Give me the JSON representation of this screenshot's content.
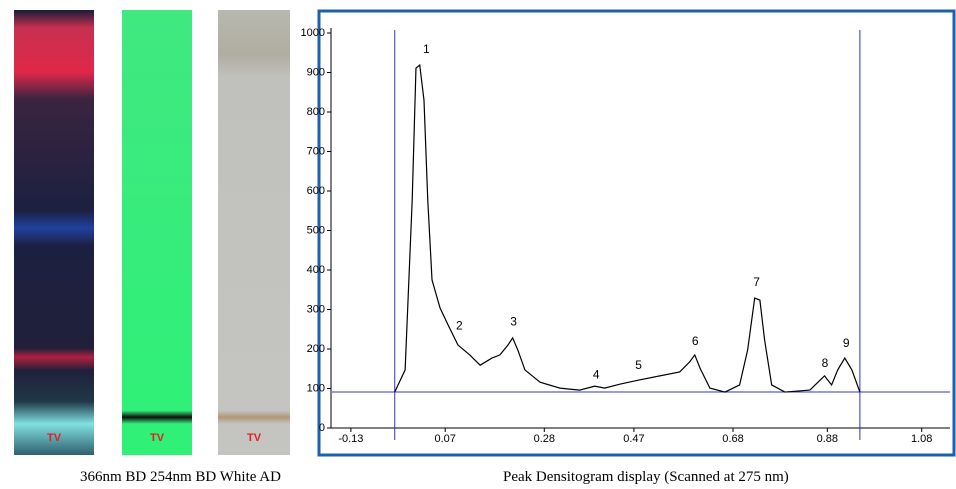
{
  "plates": [
    {
      "label": "TV"
    },
    {
      "label": "TV"
    },
    {
      "label": "TV"
    }
  ],
  "caption_left": "366nm BD 254nm BD White AD",
  "chart_data": {
    "type": "line",
    "caption": "Peak Densitogram display (Scanned at 275 nm)",
    "x": [
      -0.037,
      -0.015,
      0.0,
      0.008,
      0.016,
      0.025,
      0.033,
      0.042,
      0.059,
      0.076,
      0.097,
      0.122,
      0.144,
      0.169,
      0.186,
      0.203,
      0.213,
      0.224,
      0.239,
      0.271,
      0.313,
      0.355,
      0.387,
      0.408,
      0.44,
      0.483,
      0.525,
      0.567,
      0.588,
      0.599,
      0.61,
      0.631,
      0.663,
      0.694,
      0.711,
      0.726,
      0.737,
      0.747,
      0.762,
      0.79,
      0.843,
      0.874,
      0.889,
      0.902,
      0.917,
      0.932,
      0.949
    ],
    "series": [
      {
        "color": "#000000",
        "values": [
          91,
          147,
          577,
          911,
          919,
          830,
          577,
          375,
          304,
          261,
          210,
          185,
          159,
          177,
          185,
          210,
          228,
          197,
          147,
          116,
          101,
          96,
          106,
          101,
          111,
          122,
          132,
          142,
          167,
          185,
          152,
          101,
          91,
          109,
          197,
          329,
          324,
          223,
          109,
          91,
          96,
          132,
          109,
          147,
          177,
          147,
          91
        ]
      }
    ],
    "xlim": [
      -0.17,
      1.14
    ],
    "ylim": [
      0,
      1000
    ],
    "xticks": [
      -0.13,
      0.07,
      0.28,
      0.47,
      0.68,
      0.88,
      1.08
    ],
    "yticks": [
      0,
      100,
      200,
      300,
      400,
      500,
      600,
      700,
      800,
      900,
      1000
    ],
    "baseline": 91,
    "bounds": [
      -0.037,
      0.949
    ],
    "guide_color": "#3333bb",
    "annotations": [
      {
        "text": "1",
        "x": 0.03,
        "y": 950
      },
      {
        "text": "2",
        "x": 0.1,
        "y": 250
      },
      {
        "text": "3",
        "x": 0.215,
        "y": 260
      },
      {
        "text": "4",
        "x": 0.39,
        "y": 125
      },
      {
        "text": "5",
        "x": 0.48,
        "y": 150
      },
      {
        "text": "6",
        "x": 0.6,
        "y": 210
      },
      {
        "text": "7",
        "x": 0.73,
        "y": 360
      },
      {
        "text": "8",
        "x": 0.875,
        "y": 155
      },
      {
        "text": "9",
        "x": 0.92,
        "y": 205
      }
    ]
  }
}
